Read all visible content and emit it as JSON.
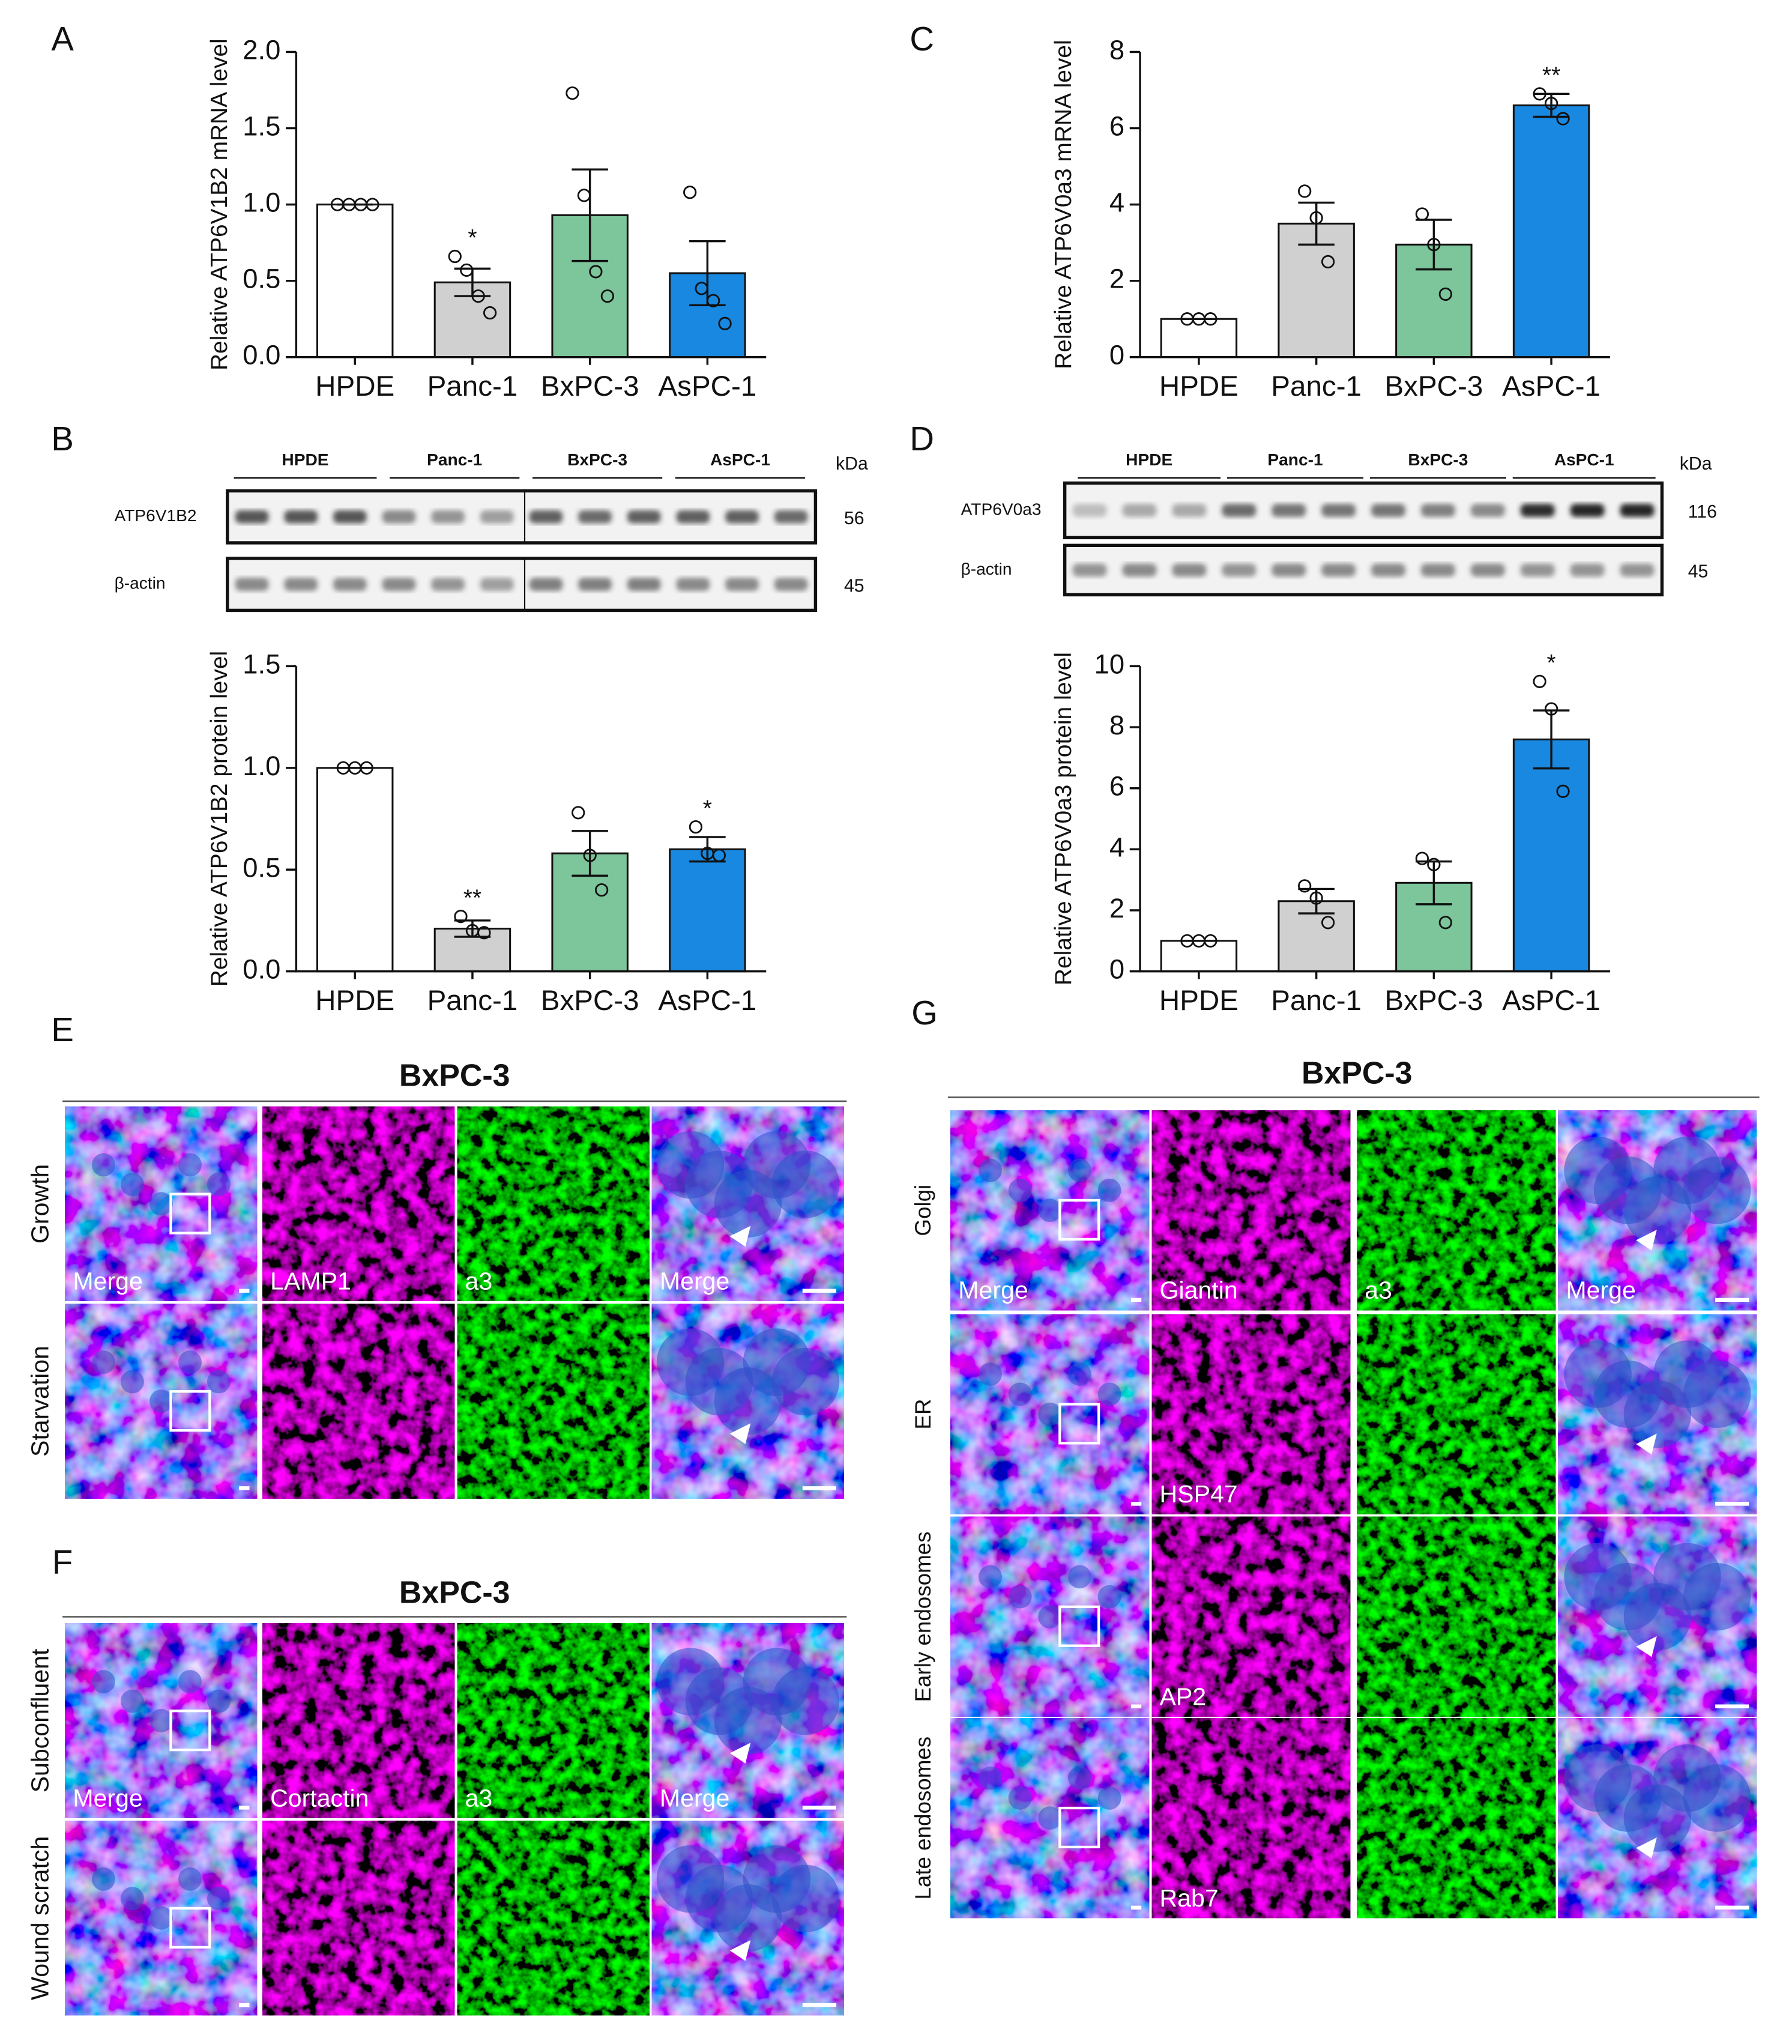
{
  "chart_data": [
    {
      "type": "bar",
      "panel": "A",
      "ylabel": "Relative ATP6V1B2 mRNA level",
      "categories": [
        "HPDE",
        "Panc-1",
        "BxPC-3",
        "AsPC-1"
      ],
      "colors": [
        "#ffffff",
        "#d0d0d0",
        "#7dc59b",
        "#1888e0"
      ],
      "values": [
        1.0,
        0.49,
        0.93,
        0.55
      ],
      "errors": [
        0,
        0.09,
        0.3,
        0.21
      ],
      "points": [
        [
          1,
          1,
          1,
          1
        ],
        [
          0.66,
          0.57,
          0.4,
          0.29
        ],
        [
          1.73,
          1.06,
          0.56,
          0.4
        ],
        [
          1.08,
          0.45,
          0.37,
          0.22
        ]
      ],
      "significance": [
        null,
        "*",
        null,
        null
      ],
      "ylim": [
        0,
        2
      ],
      "yticks": [
        {
          "value": 0,
          "label": "0.0"
        },
        {
          "value": 0.5,
          "label": "0.5"
        },
        {
          "value": 1,
          "label": "1.0"
        },
        {
          "value": 1.5,
          "label": "1.5"
        },
        {
          "value": 2,
          "label": "2.0"
        }
      ]
    },
    {
      "type": "bar",
      "panel": "B",
      "ylabel": "Relative ATP6V1B2 protein level",
      "categories": [
        "HPDE",
        "Panc-1",
        "BxPC-3",
        "AsPC-1"
      ],
      "colors": [
        "#ffffff",
        "#d0d0d0",
        "#7dc59b",
        "#1888e0"
      ],
      "values": [
        1.0,
        0.21,
        0.58,
        0.6
      ],
      "errors": [
        0,
        0.04,
        0.11,
        0.06
      ],
      "points": [
        [
          1,
          1,
          1
        ],
        [
          0.27,
          0.2,
          0.19
        ],
        [
          0.78,
          0.57,
          0.4
        ],
        [
          0.71,
          0.58,
          0.57
        ]
      ],
      "significance": [
        null,
        "**",
        null,
        "*"
      ],
      "ylim": [
        0,
        1.5
      ],
      "yticks": [
        {
          "value": 0,
          "label": "0.0"
        },
        {
          "value": 0.5,
          "label": "0.5"
        },
        {
          "value": 1,
          "label": "1.0"
        },
        {
          "value": 1.5,
          "label": "1.5"
        }
      ]
    },
    {
      "type": "bar",
      "panel": "C",
      "ylabel": "Relative ATP6V0a3 mRNA level",
      "categories": [
        "HPDE",
        "Panc-1",
        "BxPC-3",
        "AsPC-1"
      ],
      "colors": [
        "#ffffff",
        "#d0d0d0",
        "#7dc59b",
        "#1888e0"
      ],
      "values": [
        1.0,
        3.5,
        2.95,
        6.6
      ],
      "errors": [
        0,
        0.55,
        0.65,
        0.3
      ],
      "points": [
        [
          1,
          1,
          1
        ],
        [
          4.35,
          3.65,
          2.5
        ],
        [
          3.75,
          2.95,
          1.65
        ],
        [
          6.9,
          6.65,
          6.25
        ]
      ],
      "significance": [
        null,
        null,
        null,
        "**"
      ],
      "ylim": [
        0,
        8
      ],
      "yticks": [
        0,
        2,
        4,
        6,
        8
      ]
    },
    {
      "type": "bar",
      "panel": "D",
      "ylabel": "Relative ATP6V0a3 protein level",
      "categories": [
        "HPDE",
        "Panc-1",
        "BxPC-3",
        "AsPC-1"
      ],
      "colors": [
        "#ffffff",
        "#d0d0d0",
        "#7dc59b",
        "#1888e0"
      ],
      "values": [
        1.0,
        2.3,
        2.9,
        7.6
      ],
      "errors": [
        0,
        0.4,
        0.7,
        0.95
      ],
      "points": [
        [
          1,
          1,
          1
        ],
        [
          2.8,
          2.4,
          1.6
        ],
        [
          3.7,
          3.5,
          1.6
        ],
        [
          9.5,
          8.6,
          5.9
        ]
      ],
      "significance": [
        null,
        null,
        null,
        "*"
      ],
      "ylim": [
        0,
        10
      ],
      "yticks": [
        0,
        2,
        4,
        6,
        8,
        10
      ]
    }
  ],
  "blots": [
    {
      "groups": [
        "HPDE",
        "Panc-1",
        "BxPC-3",
        "AsPC-1"
      ],
      "unit": "kDa",
      "rows": [
        {
          "label": "ATP6V1B2",
          "kda": "56"
        },
        {
          "label": "β-actin",
          "kda": "45"
        }
      ]
    },
    {
      "groups": [
        "HPDE",
        "Panc-1",
        "BxPC-3",
        "AsPC-1"
      ],
      "unit": "kDa",
      "rows": [
        {
          "label": "ATP6V0a3",
          "kda": "116"
        },
        {
          "label": "β-actin",
          "kda": "45"
        }
      ]
    }
  ],
  "micrographs": [
    {
      "panel": "E",
      "title": "BxPC-3",
      "rows": [
        {
          "label": "Growth",
          "cell_labels": [
            "Merge",
            "LAMP1",
            "a3",
            "Merge"
          ]
        },
        {
          "label": "Starvation",
          "cell_labels": [
            null,
            null,
            null,
            null
          ]
        }
      ]
    },
    {
      "panel": "F",
      "title": "BxPC-3",
      "rows": [
        {
          "label": "Subconfluent",
          "cell_labels": [
            "Merge",
            "Cortactin",
            "a3",
            "Merge"
          ]
        },
        {
          "label": "Wound scratch",
          "cell_labels": [
            null,
            null,
            null,
            null
          ]
        }
      ]
    },
    {
      "panel": "G",
      "title": "BxPC-3",
      "rows": [
        {
          "label": "Golgi",
          "cell_labels": [
            "Merge",
            "Giantin",
            "a3",
            "Merge"
          ]
        },
        {
          "label": "ER",
          "cell_labels": [
            null,
            "HSP47",
            null,
            null
          ]
        },
        {
          "label": "Early endosomes",
          "cell_labels": [
            null,
            "AP2",
            null,
            null
          ]
        },
        {
          "label": "Late endosomes",
          "cell_labels": [
            null,
            "Rab7",
            null,
            null
          ]
        }
      ]
    }
  ]
}
